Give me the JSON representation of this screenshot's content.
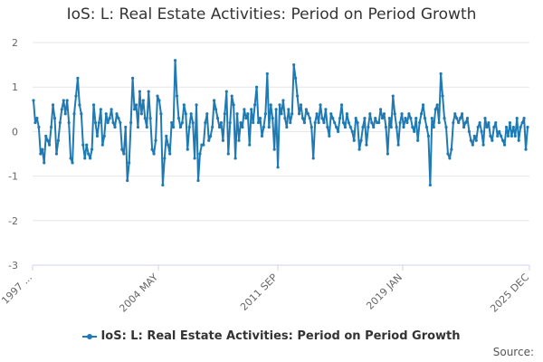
{
  "chart_data": {
    "type": "line",
    "title": "IoS: L: Real Estate Activities: Period on Period Growth",
    "xlabel": "",
    "ylabel": "",
    "ylim": [
      -3,
      2
    ],
    "yticks": [
      2,
      1,
      0,
      -1,
      -2,
      -3
    ],
    "xtick_labels": [
      "1997 ...",
      "2004 MAY",
      "2011 SEP",
      "2019 JAN",
      "2025 DEC"
    ],
    "series": [
      {
        "name": "IoS: L: Real Estate Activities: Period on Period Growth",
        "color": "#1f7ab4",
        "values": [
          0.7,
          0.2,
          0.3,
          0.1,
          -0.5,
          -0.4,
          -0.7,
          -0.1,
          -0.2,
          -0.3,
          0.1,
          0.6,
          0.3,
          -0.5,
          -0.2,
          0.2,
          0.5,
          0.7,
          0.4,
          0.7,
          0.2,
          -0.6,
          -0.7,
          0.4,
          0.8,
          1.2,
          0.6,
          0.4,
          -0.3,
          -0.6,
          -0.3,
          -0.5,
          -0.6,
          -0.4,
          0.6,
          0.2,
          -0.1,
          0.2,
          0.5,
          -0.3,
          -0.1,
          0.4,
          0.2,
          0.3,
          0.5,
          0.2,
          0.1,
          0.4,
          0.3,
          0.2,
          -0.4,
          -0.5,
          0.1,
          -1.1,
          -0.7,
          0.2,
          1.2,
          0.5,
          0.6,
          0.1,
          0.9,
          0.4,
          0.7,
          0.3,
          0.1,
          0.9,
          0.3,
          -0.4,
          -0.5,
          -0.2,
          0.8,
          0.7,
          0.4,
          -1.2,
          -0.6,
          -0.1,
          -0.3,
          -0.5,
          0.2,
          0.1,
          1.6,
          0.8,
          0.3,
          0.1,
          0.2,
          0.6,
          0.4,
          -0.4,
          0.1,
          0.4,
          0.2,
          -0.6,
          0.6,
          -1.1,
          -0.5,
          -0.3,
          -0.3,
          0.2,
          0.4,
          -0.2,
          -0.1,
          0.1,
          0.7,
          0.5,
          0.3,
          0.1,
          0.2,
          -0.2,
          0.4,
          0.9,
          -0.5,
          0.2,
          0.8,
          0.6,
          -0.6,
          0.4,
          -0.2,
          0.2,
          0.1,
          0.5,
          0.3,
          0.4,
          -0.3,
          0.5,
          0.2,
          0.6,
          1.0,
          0.2,
          0.3,
          -0.1,
          0.1,
          0.4,
          1.3,
          0.1,
          0.6,
          0.3,
          -0.4,
          0.5,
          -0.8,
          0.6,
          0.4,
          0.7,
          0.3,
          0.1,
          0.5,
          0.2,
          0.4,
          1.5,
          1.2,
          0.8,
          0.4,
          0.6,
          0.3,
          0.2,
          0.5,
          0.4,
          0.3,
          0.1,
          -0.6,
          0.2,
          0.4,
          0.2,
          0.6,
          0.3,
          0.2,
          0.5,
          0.1,
          -0.1,
          0.4,
          0.3,
          0.2,
          0.1,
          0.0,
          0.3,
          0.6,
          0.2,
          0.1,
          0.4,
          0.2,
          0.1,
          0.0,
          -0.2,
          0.3,
          0.2,
          -0.4,
          -0.2,
          0.1,
          0.3,
          -0.3,
          0.1,
          0.4,
          0.2,
          0.1,
          0.3,
          0.2,
          0.2,
          0.5,
          0.3,
          0.4,
          0.1,
          -0.5,
          0.3,
          0.1,
          0.8,
          0.4,
          0.1,
          -0.3,
          0.2,
          0.4,
          0.1,
          0.3,
          0.2,
          0.4,
          0.3,
          0.1,
          0.0,
          0.3,
          -0.2,
          0.2,
          0.4,
          0.6,
          0.3,
          0.1,
          -0.1,
          -1.2,
          0.3,
          0.1,
          0.5,
          0.6,
          0.2,
          1.3,
          0.8,
          0.3,
          0.1,
          -0.5,
          -0.6,
          -0.4,
          0.2,
          0.4,
          0.3,
          0.2,
          0.3,
          0.4,
          0.1,
          0.2,
          0.3,
          0.0,
          -0.2,
          -0.3,
          -0.1,
          -0.2,
          0.1,
          0.2,
          0.0,
          -0.3,
          0.3,
          0.1,
          0.2,
          -0.1,
          -0.2,
          0.1,
          0.2,
          -0.1,
          0.0,
          -0.1,
          -0.2,
          -0.3,
          0.1,
          -0.1,
          0.2,
          -0.1,
          0.1,
          -0.1,
          0.3,
          -0.2,
          0.1,
          0.2,
          0.3,
          -0.4,
          0.1
        ]
      }
    ]
  },
  "source_label": "Source:"
}
